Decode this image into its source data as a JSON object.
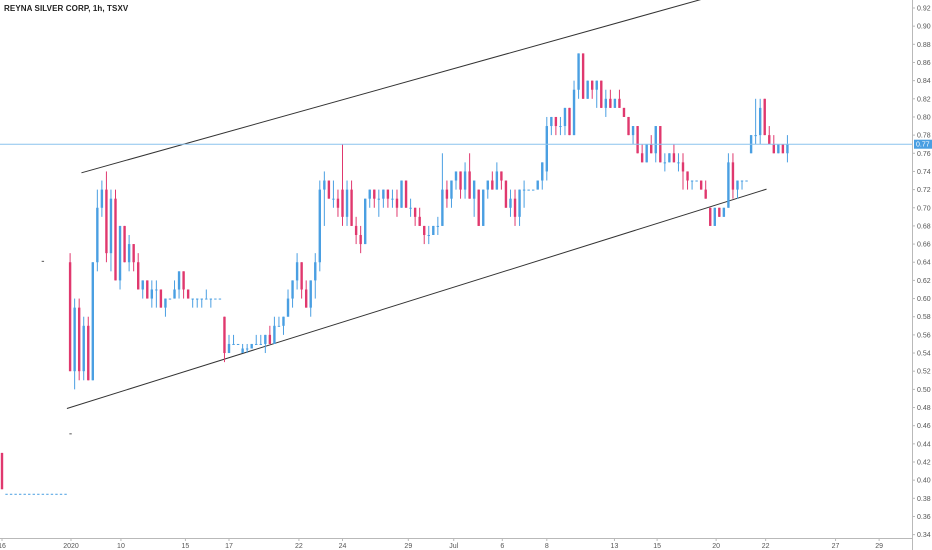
{
  "chart_data": {
    "type": "candlestick",
    "title": "REYNA SILVER CORP, 1h, TSXV",
    "colors": {
      "up": "#4a9fe2",
      "down": "#e0386e",
      "trendline": "#333333",
      "last_price_line": "#8cc3ee",
      "last_price_tag": "#4a9fe2"
    },
    "y_axis": {
      "ylim": [
        0.34,
        0.93
      ],
      "ticks": [
        "0.92",
        "0.90",
        "0.88",
        "0.86",
        "0.84",
        "0.82",
        "0.80",
        "0.78",
        "0.76",
        "0.74",
        "0.72",
        "0.70",
        "0.68",
        "0.66",
        "0.64",
        "0.62",
        "0.60",
        "0.58",
        "0.56",
        "0.54",
        "0.52",
        "0.50",
        "0.48",
        "0.46",
        "0.44",
        "0.42",
        "0.40",
        "0.38",
        "0.36",
        "0.34"
      ]
    },
    "last_price": "0.77",
    "x_axis": {
      "ticks": [
        {
          "label": "16",
          "idx": 0
        },
        {
          "label": "2020",
          "idx": 15.2
        },
        {
          "label": "10",
          "idx": 26.2
        },
        {
          "label": "15",
          "idx": 40.4
        },
        {
          "label": "17",
          "idx": 50
        },
        {
          "label": "22",
          "idx": 65.4
        },
        {
          "label": "24",
          "idx": 75
        },
        {
          "label": "29",
          "idx": 89.5
        },
        {
          "label": "Jul",
          "idx": 99.5
        },
        {
          "label": "6",
          "idx": 110.2
        },
        {
          "label": "8",
          "idx": 120
        },
        {
          "label": "13",
          "idx": 134.9
        },
        {
          "label": "15",
          "idx": 144.3
        },
        {
          "label": "20",
          "idx": 157.3
        },
        {
          "label": "22",
          "idx": 168.2
        },
        {
          "label": "27",
          "idx": 183.6
        },
        {
          "label": "29",
          "idx": 193.2
        }
      ]
    },
    "candles": [
      [
        0.43,
        0.43,
        0.39,
        0.39
      ],
      [
        0.385,
        0.385,
        0.385,
        0.385
      ],
      [
        0.385,
        0.385,
        0.385,
        0.385
      ],
      [
        0.385,
        0.385,
        0.385,
        0.385
      ],
      [
        0.385,
        0.385,
        0.385,
        0.385
      ],
      [
        0.385,
        0.385,
        0.385,
        0.385
      ],
      [
        0.385,
        0.385,
        0.385,
        0.385
      ],
      [
        0.385,
        0.385,
        0.385,
        0.385
      ],
      [
        0.385,
        0.385,
        0.385,
        0.385
      ],
      [
        0.385,
        0.385,
        0.385,
        0.385
      ],
      [
        0.385,
        0.385,
        0.385,
        0.385
      ],
      [
        0.385,
        0.385,
        0.385,
        0.385
      ],
      [
        0.385,
        0.385,
        0.385,
        0.385
      ],
      [
        0.385,
        0.385,
        0.385,
        0.385
      ],
      [
        0.385,
        0.385,
        0.385,
        0.385
      ],
      [
        0.64,
        0.65,
        0.52,
        0.52
      ],
      [
        0.52,
        0.6,
        0.5,
        0.59
      ],
      [
        0.59,
        0.6,
        0.51,
        0.52
      ],
      [
        0.52,
        0.58,
        0.51,
        0.57
      ],
      [
        0.57,
        0.58,
        0.51,
        0.51
      ],
      [
        0.51,
        0.64,
        0.51,
        0.64
      ],
      [
        0.64,
        0.72,
        0.63,
        0.7
      ],
      [
        0.7,
        0.73,
        0.69,
        0.72
      ],
      [
        0.72,
        0.74,
        0.64,
        0.65
      ],
      [
        0.65,
        0.72,
        0.63,
        0.71
      ],
      [
        0.71,
        0.72,
        0.62,
        0.62
      ],
      [
        0.62,
        0.68,
        0.61,
        0.68
      ],
      [
        0.68,
        0.68,
        0.64,
        0.64
      ],
      [
        0.64,
        0.67,
        0.63,
        0.66
      ],
      [
        0.66,
        0.66,
        0.63,
        0.64
      ],
      [
        0.64,
        0.65,
        0.61,
        0.61
      ],
      [
        0.61,
        0.62,
        0.6,
        0.62
      ],
      [
        0.62,
        0.62,
        0.6,
        0.6
      ],
      [
        0.6,
        0.62,
        0.59,
        0.61
      ],
      [
        0.61,
        0.62,
        0.59,
        0.61
      ],
      [
        0.61,
        0.61,
        0.59,
        0.59
      ],
      [
        0.59,
        0.6,
        0.58,
        0.6
      ],
      [
        0.6,
        0.6,
        0.6,
        0.6
      ],
      [
        0.6,
        0.62,
        0.6,
        0.61
      ],
      [
        0.61,
        0.63,
        0.6,
        0.63
      ],
      [
        0.63,
        0.63,
        0.6,
        0.61
      ],
      [
        0.61,
        0.61,
        0.6,
        0.6
      ],
      [
        0.6,
        0.6,
        0.59,
        0.6
      ],
      [
        0.6,
        0.6,
        0.59,
        0.6
      ],
      [
        0.6,
        0.6,
        0.59,
        0.6
      ],
      [
        0.6,
        0.61,
        0.6,
        0.6
      ],
      [
        0.6,
        0.6,
        0.59,
        0.6
      ],
      [
        0.6,
        0.6,
        0.6,
        0.6
      ],
      [
        0.6,
        0.6,
        0.6,
        0.6
      ],
      [
        0.58,
        0.58,
        0.53,
        0.54
      ],
      [
        0.54,
        0.56,
        0.54,
        0.55
      ],
      [
        0.55,
        0.56,
        0.55,
        0.55
      ],
      [
        0.55,
        0.55,
        0.55,
        0.55
      ],
      [
        0.54,
        0.55,
        0.54,
        0.545
      ],
      [
        0.545,
        0.55,
        0.54,
        0.545
      ],
      [
        0.545,
        0.55,
        0.545,
        0.55
      ],
      [
        0.55,
        0.56,
        0.55,
        0.55
      ],
      [
        0.55,
        0.56,
        0.55,
        0.55
      ],
      [
        0.55,
        0.56,
        0.54,
        0.56
      ],
      [
        0.56,
        0.57,
        0.55,
        0.55
      ],
      [
        0.55,
        0.58,
        0.55,
        0.57
      ],
      [
        0.57,
        0.58,
        0.57,
        0.57
      ],
      [
        0.57,
        0.58,
        0.56,
        0.58
      ],
      [
        0.58,
        0.61,
        0.58,
        0.6
      ],
      [
        0.6,
        0.62,
        0.59,
        0.62
      ],
      [
        0.62,
        0.65,
        0.61,
        0.64
      ],
      [
        0.64,
        0.64,
        0.6,
        0.61
      ],
      [
        0.61,
        0.62,
        0.59,
        0.59
      ],
      [
        0.59,
        0.62,
        0.58,
        0.62
      ],
      [
        0.62,
        0.65,
        0.6,
        0.64
      ],
      [
        0.64,
        0.73,
        0.63,
        0.72
      ],
      [
        0.72,
        0.74,
        0.68,
        0.73
      ],
      [
        0.73,
        0.73,
        0.71,
        0.71
      ],
      [
        0.71,
        0.73,
        0.7,
        0.71
      ],
      [
        0.71,
        0.72,
        0.69,
        0.7
      ],
      [
        0.72,
        0.77,
        0.68,
        0.69
      ],
      [
        0.69,
        0.73,
        0.68,
        0.72
      ],
      [
        0.72,
        0.73,
        0.68,
        0.68
      ],
      [
        0.68,
        0.69,
        0.66,
        0.67
      ],
      [
        0.67,
        0.68,
        0.65,
        0.66
      ],
      [
        0.66,
        0.71,
        0.66,
        0.71
      ],
      [
        0.71,
        0.72,
        0.7,
        0.72
      ],
      [
        0.72,
        0.72,
        0.7,
        0.71
      ],
      [
        0.71,
        0.72,
        0.69,
        0.71
      ],
      [
        0.71,
        0.72,
        0.7,
        0.72
      ],
      [
        0.72,
        0.72,
        0.7,
        0.71
      ],
      [
        0.71,
        0.72,
        0.7,
        0.71
      ],
      [
        0.71,
        0.72,
        0.69,
        0.7
      ],
      [
        0.7,
        0.73,
        0.7,
        0.73
      ],
      [
        0.73,
        0.73,
        0.7,
        0.7
      ],
      [
        0.7,
        0.71,
        0.69,
        0.7
      ],
      [
        0.7,
        0.7,
        0.68,
        0.69
      ],
      [
        0.69,
        0.7,
        0.68,
        0.68
      ],
      [
        0.68,
        0.68,
        0.66,
        0.67
      ],
      [
        0.67,
        0.68,
        0.66,
        0.67
      ],
      [
        0.67,
        0.68,
        0.67,
        0.68
      ],
      [
        0.68,
        0.69,
        0.67,
        0.68
      ],
      [
        0.68,
        0.76,
        0.68,
        0.72
      ],
      [
        0.72,
        0.73,
        0.7,
        0.71
      ],
      [
        0.71,
        0.73,
        0.7,
        0.73
      ],
      [
        0.73,
        0.74,
        0.72,
        0.74
      ],
      [
        0.74,
        0.74,
        0.71,
        0.72
      ],
      [
        0.72,
        0.75,
        0.71,
        0.74
      ],
      [
        0.74,
        0.76,
        0.71,
        0.71
      ],
      [
        0.71,
        0.73,
        0.69,
        0.73
      ],
      [
        0.72,
        0.72,
        0.68,
        0.68
      ],
      [
        0.68,
        0.72,
        0.68,
        0.72
      ],
      [
        0.72,
        0.73,
        0.71,
        0.73
      ],
      [
        0.73,
        0.74,
        0.72,
        0.72
      ],
      [
        0.72,
        0.75,
        0.72,
        0.74
      ],
      [
        0.74,
        0.74,
        0.72,
        0.73
      ],
      [
        0.73,
        0.73,
        0.7,
        0.7
      ],
      [
        0.7,
        0.72,
        0.69,
        0.71
      ],
      [
        0.71,
        0.72,
        0.68,
        0.69
      ],
      [
        0.69,
        0.72,
        0.68,
        0.72
      ],
      [
        0.72,
        0.73,
        0.7,
        0.72
      ],
      [
        0.72,
        0.72,
        0.72,
        0.72
      ],
      [
        0.72,
        0.72,
        0.72,
        0.72
      ],
      [
        0.72,
        0.73,
        0.72,
        0.73
      ],
      [
        0.73,
        0.75,
        0.72,
        0.75
      ],
      [
        0.74,
        0.8,
        0.73,
        0.79
      ],
      [
        0.79,
        0.8,
        0.78,
        0.8
      ],
      [
        0.8,
        0.8,
        0.78,
        0.79
      ],
      [
        0.79,
        0.8,
        0.78,
        0.79
      ],
      [
        0.79,
        0.81,
        0.78,
        0.81
      ],
      [
        0.81,
        0.81,
        0.78,
        0.78
      ],
      [
        0.78,
        0.84,
        0.78,
        0.83
      ],
      [
        0.83,
        0.87,
        0.82,
        0.87
      ],
      [
        0.87,
        0.87,
        0.82,
        0.82
      ],
      [
        0.82,
        0.84,
        0.82,
        0.84
      ],
      [
        0.84,
        0.84,
        0.82,
        0.83
      ],
      [
        0.83,
        0.84,
        0.81,
        0.84
      ],
      [
        0.84,
        0.84,
        0.81,
        0.81
      ],
      [
        0.81,
        0.83,
        0.8,
        0.82
      ],
      [
        0.82,
        0.83,
        0.81,
        0.81
      ],
      [
        0.81,
        0.82,
        0.81,
        0.82
      ],
      [
        0.82,
        0.83,
        0.81,
        0.81
      ],
      [
        0.81,
        0.81,
        0.8,
        0.8
      ],
      [
        0.8,
        0.8,
        0.78,
        0.78
      ],
      [
        0.78,
        0.79,
        0.77,
        0.79
      ],
      [
        0.79,
        0.79,
        0.76,
        0.76
      ],
      [
        0.76,
        0.77,
        0.75,
        0.75
      ],
      [
        0.75,
        0.77,
        0.75,
        0.77
      ],
      [
        0.77,
        0.78,
        0.76,
        0.76
      ],
      [
        0.76,
        0.79,
        0.75,
        0.79
      ],
      [
        0.79,
        0.79,
        0.75,
        0.75
      ],
      [
        0.75,
        0.76,
        0.74,
        0.75
      ],
      [
        0.75,
        0.76,
        0.75,
        0.76
      ],
      [
        0.76,
        0.77,
        0.75,
        0.75
      ],
      [
        0.75,
        0.76,
        0.74,
        0.75
      ],
      [
        0.75,
        0.76,
        0.72,
        0.74
      ],
      [
        0.74,
        0.74,
        0.72,
        0.73
      ],
      [
        0.73,
        0.73,
        0.72,
        0.73
      ],
      [
        0.73,
        0.73,
        0.73,
        0.73
      ],
      [
        0.73,
        0.73,
        0.72,
        0.72
      ],
      [
        0.72,
        0.73,
        0.71,
        0.71
      ],
      [
        0.7,
        0.7,
        0.68,
        0.68
      ],
      [
        0.68,
        0.7,
        0.68,
        0.7
      ],
      [
        0.7,
        0.7,
        0.69,
        0.69
      ],
      [
        0.69,
        0.7,
        0.69,
        0.7
      ],
      [
        0.7,
        0.76,
        0.7,
        0.75
      ],
      [
        0.75,
        0.76,
        0.71,
        0.72
      ],
      [
        0.72,
        0.73,
        0.71,
        0.73
      ],
      [
        0.73,
        0.73,
        0.72,
        0.73
      ],
      [
        0.73,
        0.73,
        0.73,
        0.73
      ],
      [
        0.76,
        0.78,
        0.76,
        0.78
      ],
      [
        0.78,
        0.82,
        0.77,
        0.78
      ],
      [
        0.78,
        0.82,
        0.77,
        0.81
      ],
      [
        0.82,
        0.82,
        0.78,
        0.78
      ],
      [
        0.78,
        0.79,
        0.77,
        0.77
      ],
      [
        0.77,
        0.78,
        0.76,
        0.76
      ],
      [
        0.76,
        0.77,
        0.76,
        0.77
      ],
      [
        0.77,
        0.77,
        0.76,
        0.76
      ],
      [
        0.76,
        0.78,
        0.75,
        0.77
      ]
    ],
    "trendlines": [
      {
        "from": {
          "idx": 17.5,
          "price": 0.7385
        },
        "to": {
          "idx": 154.2,
          "price": 0.9297
        }
      },
      {
        "from": {
          "idx": 14.3,
          "price": 0.4789
        },
        "to": {
          "idx": 168.4,
          "price": 0.7205
        }
      }
    ],
    "extra_marks": [
      {
        "idx": 9.0,
        "price": 0.641
      },
      {
        "idx": 15.1,
        "price": 0.451
      }
    ]
  }
}
